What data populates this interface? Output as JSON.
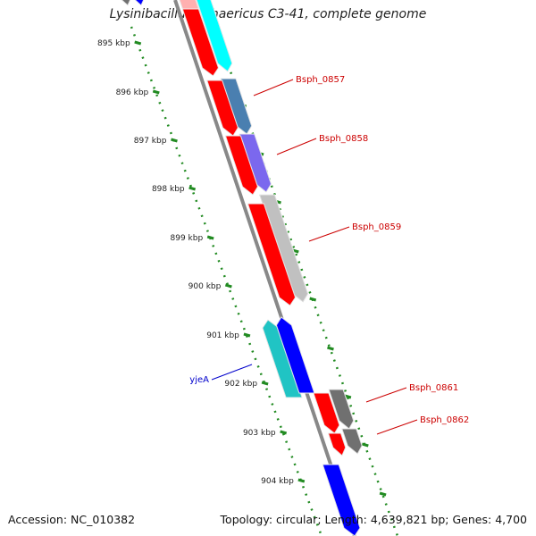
{
  "title": "Lysinibacillus sphaericus C3-41, complete genome",
  "footer": {
    "accession_label": "Accession:",
    "accession": "NC_010382",
    "topology_label": "Topology:",
    "topology": "circular",
    "length_label": "Length:",
    "length": "4,639,821 bp",
    "genes_label": "Genes:",
    "genes": "4,700"
  },
  "ticks": [
    "895 kbp",
    "896 kbp",
    "897 kbp",
    "898 kbp",
    "899 kbp",
    "900 kbp",
    "901 kbp",
    "902 kbp",
    "903 kbp",
    "904 kbp"
  ],
  "colors": {
    "backbone": "#888888",
    "tick_green": "#228B22",
    "label_red": "#cc0000",
    "label_blue": "#0000cc",
    "cds_red": "#ff0000",
    "cyan": "#00ffff",
    "steelblue": "#4a7fb0",
    "slateblue": "#7b68ee",
    "lightgray": "#c0c0c0",
    "teal": "#20c4c4",
    "blue": "#0000ff",
    "darkgray": "#707070"
  },
  "gene_labels": [
    {
      "text": "Bsph_0857",
      "color": "label_red"
    },
    {
      "text": "Bsph_0858",
      "color": "label_red"
    },
    {
      "text": "Bsph_0859",
      "color": "label_red"
    },
    {
      "text": "yjeA",
      "color": "label_blue"
    },
    {
      "text": "Bsph_0861",
      "color": "label_red"
    },
    {
      "text": "Bsph_0862",
      "color": "label_red"
    }
  ],
  "features": [
    {
      "name": "feature-pink-top",
      "color": "#ffb0b0",
      "direction": "forward"
    },
    {
      "name": "feature-cyan-top",
      "color": "cyan",
      "direction": "forward"
    },
    {
      "name": "feature-red-1",
      "color": "cds_red",
      "direction": "forward"
    },
    {
      "name": "feature-bsph-0857",
      "color": "steelblue",
      "direction": "forward"
    },
    {
      "name": "feature-red-2",
      "color": "cds_red",
      "direction": "forward"
    },
    {
      "name": "feature-bsph-0858",
      "color": "slateblue",
      "direction": "forward"
    },
    {
      "name": "feature-red-3",
      "color": "cds_red",
      "direction": "forward"
    },
    {
      "name": "feature-bsph-0859",
      "color": "lightgray",
      "direction": "forward"
    },
    {
      "name": "feature-yjea",
      "color": "teal",
      "direction": "reverse"
    },
    {
      "name": "feature-blue-cds",
      "color": "blue",
      "direction": "reverse"
    },
    {
      "name": "feature-red-4",
      "color": "cds_red",
      "direction": "forward"
    },
    {
      "name": "feature-bsph-0861",
      "color": "darkgray",
      "direction": "forward"
    },
    {
      "name": "feature-red-5",
      "color": "cds_red",
      "direction": "forward"
    },
    {
      "name": "feature-bsph-0862",
      "color": "darkgray",
      "direction": "forward"
    },
    {
      "name": "feature-blue-bottom",
      "color": "blue",
      "direction": "forward"
    },
    {
      "name": "feature-gray-top",
      "color": "darkgray",
      "direction": "forward"
    },
    {
      "name": "feature-blue-top",
      "color": "blue",
      "direction": "forward"
    }
  ]
}
